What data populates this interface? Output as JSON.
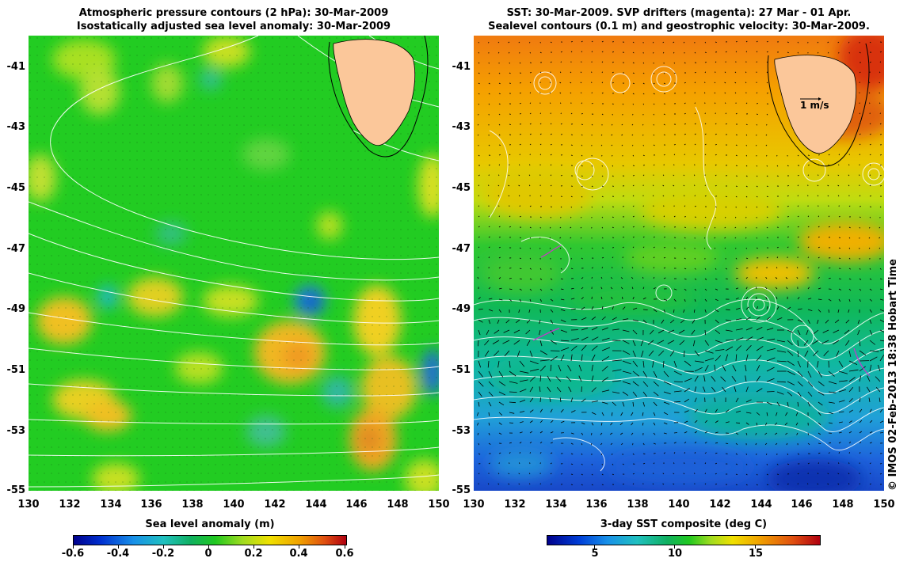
{
  "left_panel": {
    "title_line1": "Atmospheric pressure contours (2 hPa): 30-Mar-2009",
    "title_line2": "Isostatically adjusted sea level anomaly: 30-Mar-2009",
    "colorbar_label": "Sea level anomaly (m)",
    "colorbar_ticks": [
      "-0.6",
      "-0.4",
      "-0.2",
      "0",
      "0.2",
      "0.4",
      "0.6"
    ],
    "colorbar_range": [
      -0.6,
      0.6
    ]
  },
  "right_panel": {
    "title_line1": "SST: 30-Mar-2009. SVP drifters (magenta): 27 Mar - 01 Apr.",
    "title_line2": "Sealevel contours (0.1 m) and geostrophic velocity: 30-Mar-2009.",
    "colorbar_label": "3-day SST composite (deg C)",
    "colorbar_ticks": [
      "5",
      "10",
      "15"
    ],
    "colorbar_range": [
      2,
      19
    ],
    "scale_arrow_label": "1 m/s"
  },
  "axes": {
    "lon_range": [
      130,
      150
    ],
    "lat_range": [
      -55,
      -40
    ],
    "x_ticks": [
      "130",
      "132",
      "134",
      "136",
      "138",
      "140",
      "142",
      "144",
      "146",
      "148",
      "150"
    ],
    "y_ticks": [
      "-41",
      "-43",
      "-45",
      "-47",
      "-49",
      "-51",
      "-53",
      "-55"
    ]
  },
  "credit": "© IMOS 02-Feb-2013 18:38 Hobart Time",
  "colors": {
    "land": "#fbc79a",
    "contour": "#ffffff",
    "drifter": "#cc33cc",
    "anomaly_base": "#10c81e",
    "sst_warm": "#f5a000",
    "sst_cold": "#1e64dc"
  }
}
